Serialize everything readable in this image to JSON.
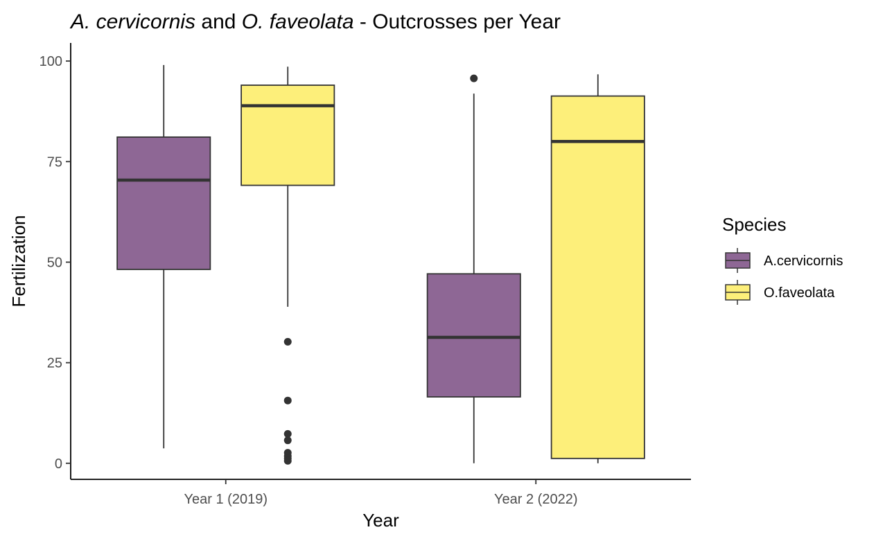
{
  "title": {
    "part1": "A. cervicornis",
    "part2": " and ",
    "part3": "O. faveolata",
    "part4": " - Outcrosses per Year"
  },
  "chart_data": {
    "type": "boxplot",
    "title": "A. cervicornis and O. faveolata - Outcrosses per Year",
    "xlabel": "Year",
    "ylabel": "Fertilization",
    "categories": [
      "Year 1 (2019)",
      "Year 2 (2022)"
    ],
    "ylim": [
      -4,
      104.5
    ],
    "yticks": [
      0,
      25,
      50,
      75,
      100
    ],
    "grid": false,
    "legend": {
      "title": "Species",
      "position": "right"
    },
    "series": [
      {
        "name": "A.cervicornis",
        "color": "#8e6795",
        "boxes": [
          {
            "category": "Year 1 (2019)",
            "whisker_low": 3.7,
            "q1": 48.2,
            "median": 70.4,
            "q3": 81.1,
            "whisker_high": 99.0,
            "outliers": []
          },
          {
            "category": "Year 2 (2022)",
            "whisker_low": 0.0,
            "q1": 16.5,
            "median": 31.3,
            "q3": 47.1,
            "whisker_high": 91.9,
            "outliers": [
              95.7
            ]
          }
        ]
      },
      {
        "name": "O.faveolata",
        "color": "#fdef7a",
        "boxes": [
          {
            "category": "Year 1 (2019)",
            "whisker_low": 38.9,
            "q1": 69.1,
            "median": 88.9,
            "q3": 94.0,
            "whisker_high": 98.6,
            "outliers": [
              30.2,
              15.6,
              7.3,
              5.7,
              2.6,
              1.8,
              1.2,
              0.6
            ]
          },
          {
            "category": "Year 2 (2022)",
            "whisker_low": 0.0,
            "q1": 1.2,
            "median": 80.0,
            "q3": 91.3,
            "whisker_high": 96.7,
            "outliers": []
          }
        ]
      }
    ]
  }
}
